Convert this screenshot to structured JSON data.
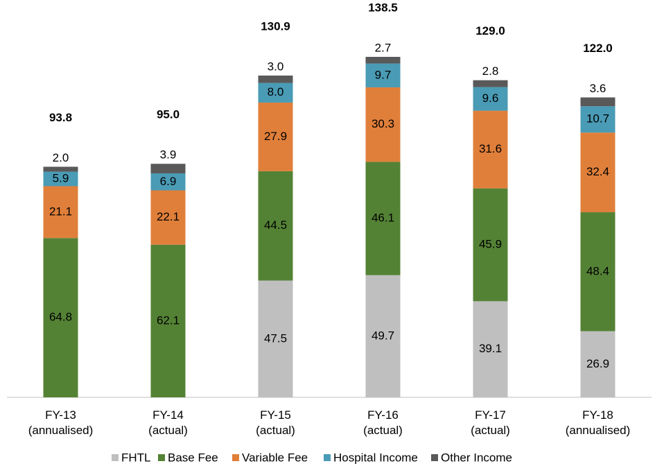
{
  "chart_data": {
    "type": "stacked-bar",
    "categories": [
      "FY-13\n(annualised)",
      "FY-14\n(actual)",
      "FY-15\n(actual)",
      "FY-16\n(actual)",
      "FY-17\n(actual)",
      "FY-18\n(annualised)"
    ],
    "series": [
      {
        "name": "FHTL",
        "color": "#bfbfbf",
        "values": [
          null,
          null,
          47.5,
          49.7,
          39.1,
          26.9
        ],
        "value_labels": [
          null,
          null,
          "47.5",
          "49.7",
          "39.1",
          "26.9"
        ]
      },
      {
        "name": "Base Fee",
        "color": "#548235",
        "values": [
          64.8,
          62.1,
          44.5,
          46.1,
          45.9,
          48.4
        ],
        "value_labels": [
          "64.8",
          "62.1",
          "44.5",
          "46.1",
          "45.9",
          "48.4"
        ]
      },
      {
        "name": "Variable Fee",
        "color": "#e07f3a",
        "values": [
          21.1,
          22.1,
          27.9,
          30.3,
          31.6,
          32.4
        ],
        "value_labels": [
          "21.1",
          "22.1",
          "27.9",
          "30.3",
          "31.6",
          "32.4"
        ]
      },
      {
        "name": "Hospital Income",
        "color": "#4a9bb5",
        "values": [
          5.9,
          6.9,
          8.0,
          9.7,
          9.6,
          10.7
        ],
        "value_labels": [
          "5.9",
          "6.9",
          "8.0",
          "9.7",
          "9.6",
          "10.7"
        ]
      },
      {
        "name": "Other Income",
        "color": "#595959",
        "values": [
          2.0,
          3.9,
          3.0,
          2.7,
          2.8,
          3.6
        ],
        "value_labels": [
          "2.0",
          "3.9",
          "3.0",
          "2.7",
          "2.8",
          "3.6"
        ]
      }
    ],
    "totals": [
      93.8,
      95.0,
      130.9,
      138.5,
      129.0,
      122.0
    ],
    "total_labels": [
      "93.8",
      "95.0",
      "130.9",
      "138.5",
      "129.0",
      "122.0"
    ],
    "legend": "bottom"
  }
}
